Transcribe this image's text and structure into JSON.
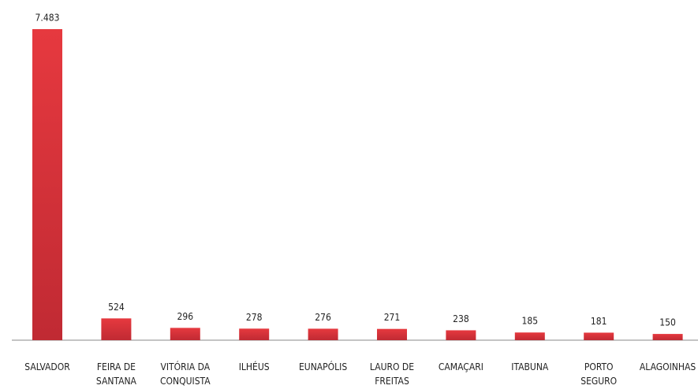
{
  "chart_data": {
    "type": "bar",
    "categories": [
      [
        "SALVADOR"
      ],
      [
        "FEIRA DE",
        "SANTANA"
      ],
      [
        "VITÓRIA DA",
        "CONQUISTA"
      ],
      [
        "ILHÉUS"
      ],
      [
        "EUNAPÓLIS"
      ],
      [
        "LAURO DE",
        "FREITAS"
      ],
      [
        "CAMAÇARI"
      ],
      [
        "ITABUNA"
      ],
      [
        "PORTO",
        "SEGURO"
      ],
      [
        "ALAGOINHAS"
      ]
    ],
    "values": [
      7483,
      524,
      296,
      278,
      276,
      271,
      238,
      185,
      181,
      150
    ],
    "value_labels": [
      "7.483",
      "524",
      "296",
      "278",
      "276",
      "271",
      "238",
      "185",
      "181",
      "150"
    ],
    "color": "#e03a3e"
  }
}
